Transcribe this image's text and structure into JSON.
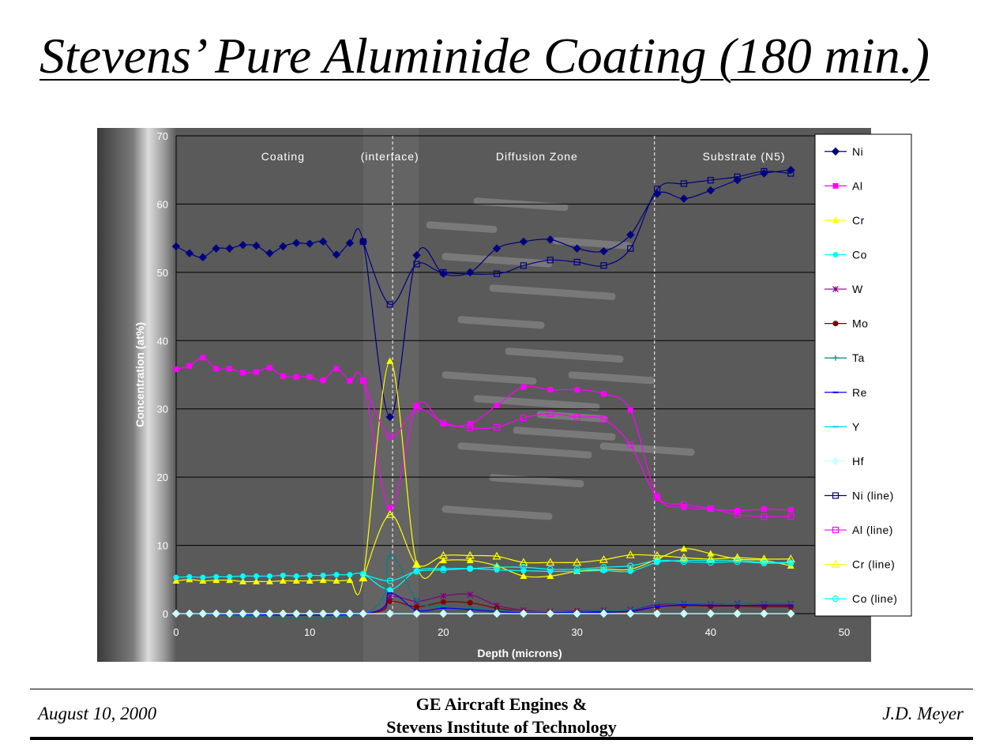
{
  "slide": {
    "title": "Stevens’ Pure Aluminide Coating (180 min.)"
  },
  "footer": {
    "date": "August 10, 2000",
    "org_line1": "GE Aircraft Engines &",
    "org_line2": "Stevens Institute of Technology",
    "author": "J.D. Meyer"
  },
  "colors": {
    "Ni": "#000080",
    "Al": "#ff00ff",
    "Cr": "#ffff00",
    "Co": "#00ffff",
    "W": "#800080",
    "Mo": "#800000",
    "Ta": "#008080",
    "Re": "#0000ff",
    "Y": "#00ccff",
    "Hf": "#ccffff"
  },
  "chart_data": {
    "type": "scatter",
    "xlabel": "Depth (microns)",
    "ylabel": "Concentration (at%)",
    "xlim": [
      0,
      50
    ],
    "ylim": [
      0,
      70
    ],
    "xticks": [
      0,
      10,
      20,
      30,
      40,
      50
    ],
    "yticks": [
      0,
      10,
      20,
      30,
      40,
      50,
      60,
      70
    ],
    "grid": "horizontal major gridlines",
    "legend_position": "right",
    "background": "SEM micrograph of coating cross-section",
    "region_labels": [
      {
        "text": "Coating",
        "x": 8
      },
      {
        "text": "(interface)",
        "x": 16
      },
      {
        "text": "Diffusion Zone",
        "x": 27
      },
      {
        "text": "Substrate (N5)",
        "x": 42.5
      }
    ],
    "region_boundaries": [
      16.2,
      35.8
    ],
    "series": [
      {
        "name": "Ni",
        "marker": "diamond",
        "color": "#000080",
        "x": [
          0,
          1,
          2,
          3,
          4,
          5,
          6,
          7,
          8,
          9,
          10,
          11,
          12,
          13,
          14,
          16,
          18,
          20,
          22,
          24,
          26,
          28,
          30,
          32,
          34,
          36,
          38,
          40,
          42,
          44,
          46
        ],
        "y": [
          53.8,
          52.8,
          52.2,
          53.5,
          53.5,
          54.0,
          53.9,
          52.8,
          53.8,
          54.3,
          54.2,
          54.5,
          52.6,
          54.3,
          54.5,
          28.8,
          52.5,
          49.8,
          50.0,
          53.5,
          54.5,
          54.8,
          53.5,
          53.1,
          55.5,
          61.5,
          60.8,
          62.0,
          63.5,
          64.5,
          65.0
        ]
      },
      {
        "name": "Al",
        "marker": "square",
        "color": "#ff00ff",
        "x": [
          0,
          1,
          2,
          3,
          4,
          5,
          6,
          7,
          8,
          9,
          10,
          11,
          12,
          13,
          14,
          16,
          18,
          20,
          22,
          24,
          26,
          28,
          30,
          32,
          34,
          36,
          38,
          40,
          42,
          44,
          46
        ],
        "y": [
          35.8,
          36.3,
          37.5,
          35.9,
          35.9,
          35.3,
          35.4,
          36.0,
          34.8,
          34.7,
          34.7,
          34.2,
          35.9,
          34.1,
          34.1,
          15.5,
          30.5,
          27.8,
          27.8,
          30.5,
          33.2,
          32.8,
          32.8,
          32.2,
          29.8,
          17.2,
          15.6,
          15.3,
          15.1,
          15.3,
          15.2
        ]
      },
      {
        "name": "Cr",
        "marker": "triangle",
        "color": "#ffff00",
        "x": [
          0,
          1,
          2,
          3,
          4,
          5,
          6,
          7,
          8,
          9,
          10,
          11,
          12,
          13,
          14,
          16,
          18,
          20,
          22,
          24,
          26,
          28,
          30,
          32,
          34,
          36,
          38,
          40,
          42,
          44,
          46
        ],
        "y": [
          4.8,
          5.0,
          4.8,
          4.9,
          4.9,
          4.7,
          4.7,
          4.7,
          4.8,
          4.8,
          4.8,
          4.9,
          4.8,
          4.9,
          5.2,
          37.0,
          7.2,
          7.8,
          7.8,
          7.0,
          5.5,
          5.5,
          6.2,
          6.5,
          6.5,
          8.0,
          9.5,
          8.8,
          8.0,
          7.8,
          7.0
        ]
      },
      {
        "name": "Co",
        "marker": "circle",
        "color": "#00ffff",
        "x": [
          0,
          1,
          2,
          3,
          4,
          5,
          6,
          7,
          8,
          9,
          10,
          11,
          12,
          13,
          14,
          16,
          18,
          20,
          22,
          24,
          26,
          28,
          30,
          32,
          34,
          36,
          38,
          40,
          42,
          44,
          46
        ],
        "y": [
          5.3,
          5.4,
          5.3,
          5.4,
          5.4,
          5.5,
          5.5,
          5.5,
          5.6,
          5.5,
          5.6,
          5.6,
          5.7,
          5.7,
          5.8,
          3.5,
          6.3,
          6.6,
          6.6,
          6.4,
          6.3,
          6.2,
          6.2,
          6.3,
          6.2,
          7.5,
          7.8,
          7.8,
          7.8,
          7.5,
          7.5
        ]
      },
      {
        "name": "W",
        "marker": "star",
        "color": "#800080",
        "x": [
          0,
          14,
          16,
          18,
          20,
          22,
          24,
          26,
          28,
          30,
          32,
          34,
          36,
          38,
          40,
          42,
          44,
          46
        ],
        "y": [
          0,
          0,
          2.5,
          1.8,
          2.6,
          2.8,
          1.2,
          0.5,
          0.3,
          0.4,
          0.5,
          0.6,
          1.3,
          1.5,
          1.4,
          1.5,
          1.4,
          1.4
        ]
      },
      {
        "name": "Mo",
        "marker": "circle",
        "color": "#800000",
        "x": [
          0,
          14,
          16,
          18,
          20,
          22,
          24,
          26,
          28,
          30,
          32,
          34,
          36,
          38,
          40,
          42,
          44,
          46
        ],
        "y": [
          0,
          0,
          1.8,
          1.0,
          1.7,
          1.6,
          0.8,
          0.3,
          0.2,
          0.3,
          0.3,
          0.3,
          1.0,
          1.2,
          1.1,
          1.1,
          1.0,
          1.0
        ]
      },
      {
        "name": "Ta",
        "marker": "plus",
        "color": "#008080",
        "x": [
          0,
          14,
          16,
          18,
          20,
          22,
          24,
          26,
          28,
          30,
          32,
          34,
          36,
          38,
          40,
          42,
          44,
          46
        ],
        "y": [
          0,
          0,
          8.5,
          2.0,
          1.0,
          0.8,
          0.5,
          0.3,
          0.3,
          0.3,
          0.5,
          0.6,
          1.5,
          1.5,
          1.5,
          1.5,
          1.5,
          1.5
        ]
      },
      {
        "name": "Re",
        "marker": "dash",
        "color": "#0000ff",
        "x": [
          0,
          14,
          16,
          18,
          20,
          22,
          24,
          26,
          28,
          30,
          32,
          34,
          36,
          38,
          40,
          42,
          44,
          46
        ],
        "y": [
          0,
          0,
          3.0,
          0.5,
          0.8,
          0.6,
          0.3,
          0.1,
          0.1,
          0.2,
          0.2,
          0.4,
          1.0,
          1.3,
          1.2,
          1.2,
          1.2,
          1.2
        ]
      },
      {
        "name": "Y",
        "marker": "dash",
        "color": "#00ccff",
        "x": [
          0,
          46
        ],
        "y": [
          0,
          0
        ]
      },
      {
        "name": "Hf",
        "marker": "diamond",
        "color": "#ccffff",
        "x": [
          0,
          1,
          2,
          3,
          4,
          5,
          6,
          7,
          8,
          9,
          10,
          11,
          12,
          13,
          14,
          16,
          18,
          20,
          22,
          24,
          26,
          28,
          30,
          32,
          34,
          36,
          38,
          40,
          42,
          44,
          46
        ],
        "y": [
          0,
          0,
          0,
          0,
          0,
          0,
          0,
          0,
          0,
          0,
          0,
          0,
          0,
          0,
          0,
          0,
          0,
          0,
          0,
          0,
          0,
          0,
          0,
          0,
          0,
          0,
          0,
          0,
          0,
          0,
          0
        ]
      },
      {
        "name": "Ni (line)",
        "marker": "open-square",
        "color": "#000080",
        "x": [
          14,
          16,
          18,
          20,
          24,
          26,
          28,
          30,
          32,
          34,
          36,
          38,
          40,
          42,
          44,
          46
        ],
        "y": [
          54.5,
          45.3,
          51.2,
          50.0,
          49.8,
          51.0,
          51.8,
          51.5,
          51.0,
          53.5,
          62.2,
          63.0,
          63.5,
          64.0,
          64.8,
          64.5
        ]
      },
      {
        "name": "Al (line)",
        "marker": "open-square",
        "color": "#ff00ff",
        "x": [
          14,
          16,
          18,
          20,
          22,
          24,
          26,
          28,
          30,
          32,
          34,
          36,
          38,
          40,
          42,
          44,
          46
        ],
        "y": [
          34.1,
          26.0,
          30.0,
          28.0,
          27.2,
          27.3,
          28.7,
          29.3,
          28.8,
          28.5,
          24.7,
          17.0,
          16.0,
          15.4,
          14.5,
          14.2,
          14.2
        ]
      },
      {
        "name": "Cr (line)",
        "marker": "open-triangle",
        "color": "#ffff00",
        "x": [
          14,
          16,
          18,
          20,
          22,
          24,
          26,
          28,
          30,
          32,
          34,
          36,
          38,
          40,
          42,
          44,
          46
        ],
        "y": [
          5.2,
          14.5,
          7.2,
          8.5,
          8.5,
          8.4,
          7.5,
          7.5,
          7.5,
          7.9,
          8.6,
          8.5,
          8.2,
          8.0,
          8.2,
          8.0,
          8.0
        ]
      },
      {
        "name": "Co (line)",
        "marker": "open-circle",
        "color": "#00ffff",
        "x": [
          14,
          16,
          18,
          20,
          22,
          24,
          26,
          28,
          30,
          32,
          34,
          36,
          38,
          40,
          42,
          44,
          46
        ],
        "y": [
          5.8,
          4.8,
          6.2,
          6.4,
          6.6,
          6.8,
          6.8,
          6.5,
          6.5,
          6.8,
          7.0,
          7.8,
          7.6,
          7.5,
          7.6,
          7.4,
          7.4
        ]
      }
    ]
  }
}
